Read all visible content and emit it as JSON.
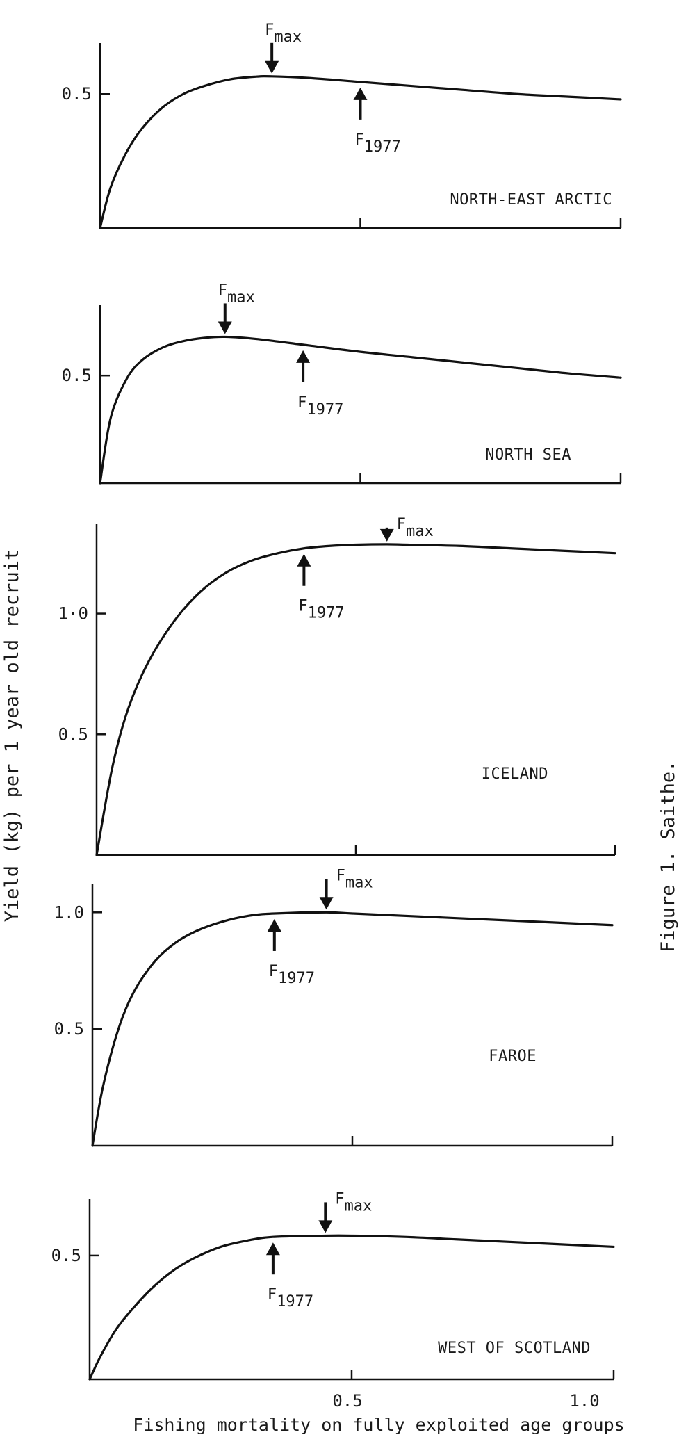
{
  "figure": {
    "caption": "Figure 1. Saithe.",
    "ylabel": "Yield (kg) per 1 year old recruit",
    "xlabel": "Fishing mortality on fully exploited age groups",
    "x_tick_labels": [
      "0.5",
      "1.0"
    ]
  },
  "chart_data": [
    {
      "type": "line",
      "region": "NORTH-EAST ARCTIC",
      "xlim": [
        0,
        1.0
      ],
      "ylim": [
        0,
        0.69
      ],
      "y_ticks": [
        0.5
      ],
      "y_tick_labels": [
        "0.5"
      ],
      "x_ticks": [
        0.5,
        1.0
      ],
      "x": [
        0,
        0.02,
        0.05,
        0.08,
        0.12,
        0.16,
        0.2,
        0.25,
        0.3,
        0.33,
        0.4,
        0.5,
        0.6,
        0.7,
        0.8,
        0.9,
        1.0
      ],
      "y": [
        0,
        0.15,
        0.28,
        0.37,
        0.45,
        0.5,
        0.53,
        0.555,
        0.565,
        0.566,
        0.56,
        0.545,
        0.53,
        0.515,
        0.5,
        0.49,
        0.48
      ],
      "markers": [
        {
          "label": "F",
          "sub": "max",
          "x": 0.33,
          "direction": "down"
        },
        {
          "label": "F",
          "sub": "1977",
          "x": 0.5,
          "direction": "up"
        }
      ]
    },
    {
      "type": "line",
      "region": "NORTH SEA",
      "xlim": [
        0,
        1.0
      ],
      "ylim": [
        0,
        0.83
      ],
      "y_ticks": [
        0.5
      ],
      "y_tick_labels": [
        "0.5"
      ],
      "x_ticks": [
        0.5,
        1.0
      ],
      "x": [
        0,
        0.02,
        0.05,
        0.08,
        0.12,
        0.16,
        0.2,
        0.24,
        0.3,
        0.4,
        0.5,
        0.6,
        0.7,
        0.8,
        0.9,
        1.0
      ],
      "y": [
        0,
        0.3,
        0.48,
        0.57,
        0.63,
        0.66,
        0.675,
        0.68,
        0.67,
        0.64,
        0.61,
        0.585,
        0.56,
        0.535,
        0.51,
        0.49
      ],
      "markers": [
        {
          "label": "F",
          "sub": "max",
          "x": 0.24,
          "direction": "down"
        },
        {
          "label": "F",
          "sub": "1977",
          "x": 0.39,
          "direction": "up"
        }
      ]
    },
    {
      "type": "line",
      "region": "ICELAND",
      "xlim": [
        0,
        1.0
      ],
      "ylim": [
        0,
        1.37
      ],
      "y_ticks": [
        0.5,
        1.0
      ],
      "y_tick_labels": [
        "0.5",
        "1·0"
      ],
      "x_ticks": [
        0.5,
        1.0
      ],
      "x": [
        0,
        0.03,
        0.06,
        0.1,
        0.15,
        0.2,
        0.25,
        0.3,
        0.35,
        0.4,
        0.45,
        0.5,
        0.56,
        0.6,
        0.7,
        0.8,
        0.9,
        1.0
      ],
      "y": [
        0,
        0.36,
        0.6,
        0.8,
        0.97,
        1.09,
        1.17,
        1.22,
        1.25,
        1.27,
        1.28,
        1.285,
        1.287,
        1.285,
        1.28,
        1.27,
        1.26,
        1.25
      ],
      "markers": [
        {
          "label": "F",
          "sub": "max",
          "x": 0.56,
          "direction": "down"
        },
        {
          "label": "F",
          "sub": "1977",
          "x": 0.4,
          "direction": "up"
        }
      ]
    },
    {
      "type": "line",
      "region": "FAROE",
      "xlim": [
        0,
        1.0
      ],
      "ylim": [
        0,
        1.12
      ],
      "y_ticks": [
        0.5,
        1.0
      ],
      "y_tick_labels": [
        "0.5",
        "1.0"
      ],
      "x_ticks": [
        0.5,
        1.0
      ],
      "x": [
        0,
        0.02,
        0.05,
        0.08,
        0.12,
        0.16,
        0.2,
        0.25,
        0.3,
        0.35,
        0.45,
        0.5,
        0.6,
        0.7,
        0.8,
        0.9,
        1.0
      ],
      "y": [
        0,
        0.25,
        0.5,
        0.66,
        0.79,
        0.87,
        0.92,
        0.96,
        0.985,
        0.995,
        1.0,
        0.995,
        0.985,
        0.975,
        0.965,
        0.955,
        0.945
      ],
      "markers": [
        {
          "label": "F",
          "sub": "max",
          "x": 0.45,
          "direction": "down"
        },
        {
          "label": "F",
          "sub": "1977",
          "x": 0.35,
          "direction": "up"
        }
      ]
    },
    {
      "type": "line",
      "region": "WEST OF SCOTLAND",
      "xlim": [
        0,
        1.0
      ],
      "ylim": [
        0,
        0.73
      ],
      "y_ticks": [
        0.5
      ],
      "y_tick_labels": [
        "0.5"
      ],
      "x_ticks": [
        0.5,
        1.0
      ],
      "x": [
        0,
        0.02,
        0.05,
        0.08,
        0.12,
        0.16,
        0.2,
        0.25,
        0.3,
        0.35,
        0.45,
        0.5,
        0.6,
        0.7,
        0.8,
        0.9,
        1.0
      ],
      "y": [
        0,
        0.09,
        0.2,
        0.28,
        0.37,
        0.44,
        0.49,
        0.535,
        0.56,
        0.575,
        0.58,
        0.58,
        0.575,
        0.565,
        0.555,
        0.545,
        0.535
      ],
      "markers": [
        {
          "label": "F",
          "sub": "max",
          "x": 0.45,
          "direction": "down"
        },
        {
          "label": "F",
          "sub": "1977",
          "x": 0.35,
          "direction": "up"
        }
      ]
    }
  ]
}
